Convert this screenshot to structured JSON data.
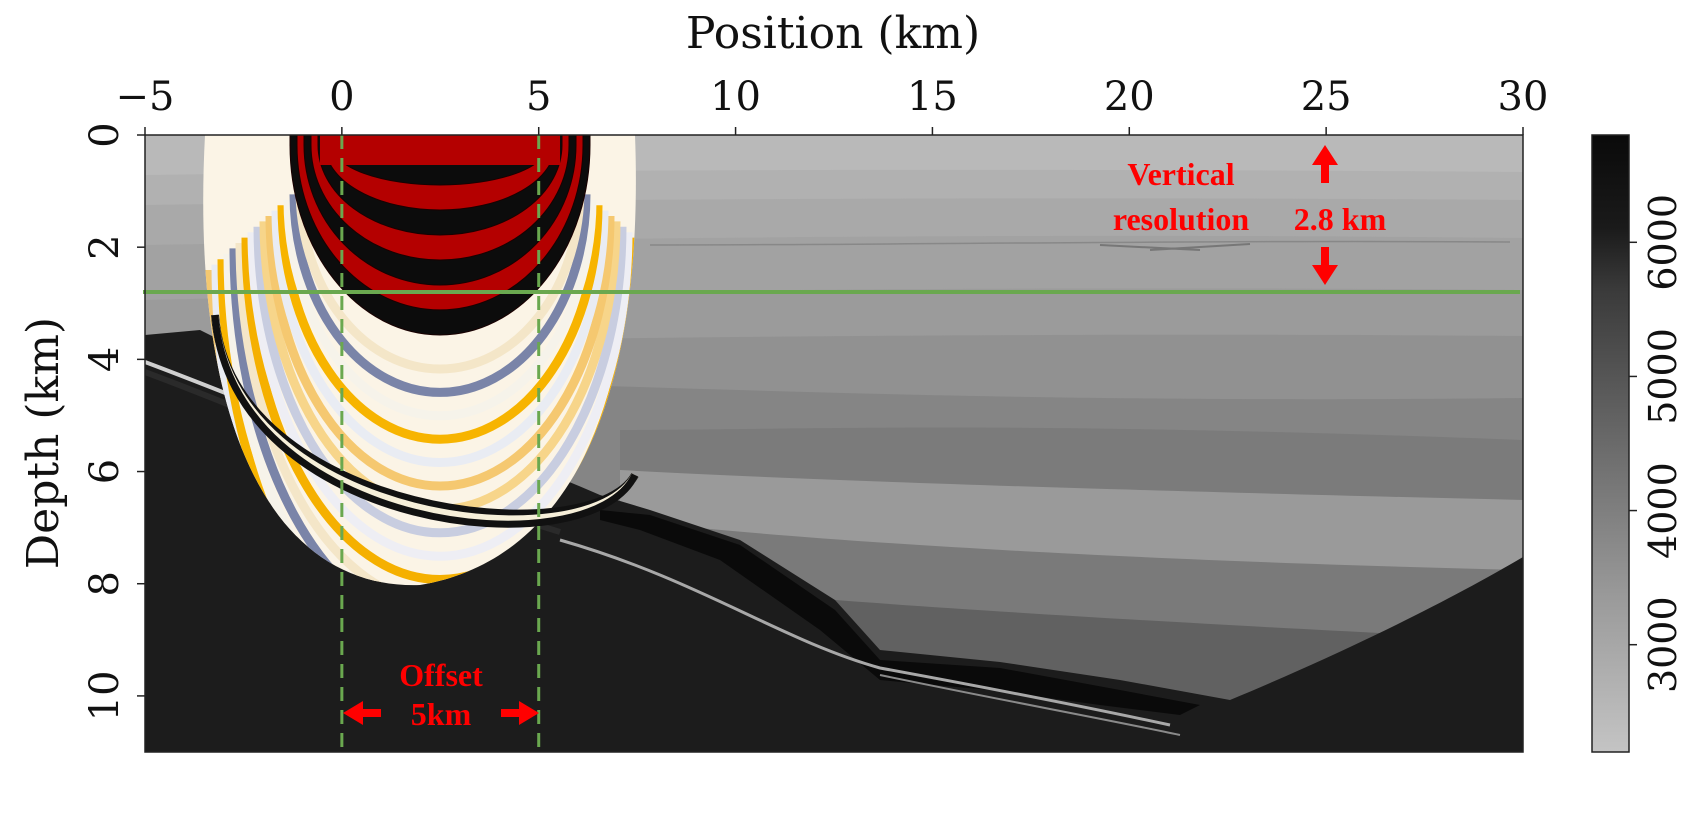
{
  "chart_data": {
    "type": "heatmap",
    "xlabel": "Position (km)",
    "ylabel": "Depth (km)",
    "xlim": [
      -5,
      30
    ],
    "ylim": [
      0,
      11
    ],
    "x_ticks": [
      -5,
      0,
      5,
      10,
      15,
      20,
      25,
      30
    ],
    "y_ticks": [
      0,
      2,
      4,
      6,
      8,
      10
    ],
    "x_tick_labels": [
      "−5",
      "0",
      "5",
      "10",
      "15",
      "20",
      "25",
      "30"
    ],
    "y_tick_labels": [
      "0",
      "2",
      "4",
      "6",
      "8",
      "10"
    ],
    "colorbar": {
      "range": [
        2200,
        6800
      ],
      "ticks": [
        3000,
        4000,
        5000,
        6000
      ],
      "tick_labels": [
        "3000",
        "4000",
        "5000",
        "6000"
      ],
      "colormap": "gray-reversed"
    },
    "reference_lines": {
      "vertical_dashed_x": [
        0,
        5
      ],
      "horizontal_depth": 2.8,
      "color": "#6aa84f"
    },
    "annotations": {
      "vertical_resolution": {
        "line1": "Vertical",
        "line2": "resolution",
        "value": "2.8 km",
        "x": 25
      },
      "offset": {
        "line1": "Offset",
        "line2": "5km"
      }
    },
    "colors": {
      "annotation": "#ff0000",
      "guide": "#6aa84f",
      "wavefront_red": "#b40000",
      "wavefront_yellow": "#f5b000"
    }
  }
}
